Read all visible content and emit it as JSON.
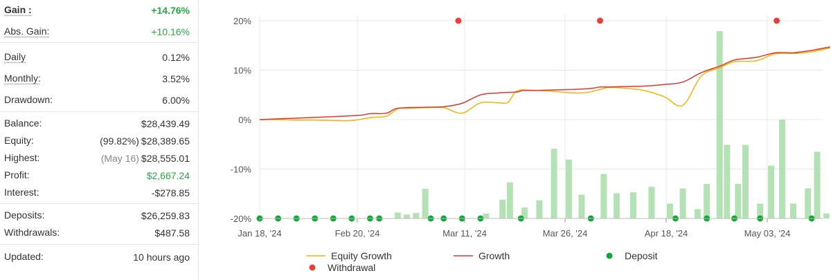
{
  "stats": {
    "gain": {
      "label": "Gain :",
      "value": "+14.76%"
    },
    "abs_gain": {
      "label": "Abs. Gain:",
      "value": "+10.16%"
    },
    "daily": {
      "label": "Daily",
      "value": "0.12%"
    },
    "monthly": {
      "label": "Monthly:",
      "value": "3.52%"
    },
    "drawdown": {
      "label": "Drawdown:",
      "value": "6.00%"
    },
    "balance": {
      "label": "Balance:",
      "value": "$28,439.49"
    },
    "equity": {
      "label": "Equity:",
      "prefix": "(99.82%)",
      "value": "$28,389.65"
    },
    "highest": {
      "label": "Highest:",
      "prefix": "(May 16)",
      "value": "$28,555.01"
    },
    "profit": {
      "label": "Profit:",
      "value": "$2,667.24"
    },
    "interest": {
      "label": "Interest:",
      "value": "-$278.85"
    },
    "deposits": {
      "label": "Deposits:",
      "value": "$26,259.83"
    },
    "withdrawals": {
      "label": "Withdrawals:",
      "value": "$487.58"
    },
    "updated": {
      "label": "Updated:",
      "value": "10 hours ago"
    }
  },
  "chart_data": {
    "type": "line",
    "x_ticks": [
      "Jan 18, '24",
      "Feb 20, '24",
      "Mar 11, '24",
      "Mar 26, '24",
      "Apr 18, '24",
      "May 03, '24"
    ],
    "y_ticks": [
      "20%",
      "10%",
      "0%",
      "-10%",
      "-20%"
    ],
    "ylim": [
      -20,
      20
    ],
    "grid": true,
    "legend_position": "bottom",
    "legend": {
      "equity_growth": "Equity Growth",
      "growth": "Growth",
      "deposit": "Deposit",
      "withdrawal": "Withdrawal"
    },
    "colors": {
      "equity_growth": "#f5b400",
      "growth": "#e3342f",
      "deposit": "#13a538",
      "withdrawal": "#e8403a",
      "bars": "#b5e2b5",
      "grid": "#e8e8e8"
    },
    "x_range": [
      0,
      30.6
    ],
    "series": [
      {
        "name": "Equity Growth",
        "x": [
          0,
          1,
          2,
          3,
          4,
          5,
          6,
          6.9,
          7.5,
          8,
          9,
          10,
          11,
          12,
          13,
          13.5,
          14,
          15,
          16,
          17,
          17.8,
          18.5,
          19,
          20,
          21,
          22,
          23,
          24,
          25,
          25.6,
          26,
          27,
          28,
          28.9,
          29.2,
          30,
          31
        ],
        "y": [
          0,
          0,
          -0.1,
          -0.1,
          -0.2,
          -0.2,
          0.4,
          0.7,
          2.2,
          2.3,
          2.4,
          2.4,
          1.3,
          3.4,
          3.4,
          3.5,
          5.8,
          5.9,
          5.7,
          5.4,
          5.5,
          6.1,
          6.5,
          6.3,
          5.8,
          4.6,
          2.9,
          8.8,
          10.5,
          11.5,
          11.8,
          11.9,
          13.3,
          13.4,
          13.4,
          13.7,
          14.5
        ]
      },
      {
        "name": "Growth",
        "x": [
          0,
          2,
          4,
          5.5,
          6,
          6.9,
          7.5,
          9,
          10,
          11,
          12,
          13,
          14,
          14.3,
          15,
          16,
          17,
          18,
          18.5,
          19,
          20,
          21,
          22,
          23,
          24,
          25,
          25.6,
          26,
          27,
          28,
          28.9,
          29.2,
          30,
          31
        ],
        "y": [
          0,
          0.3,
          0.6,
          0.9,
          1.2,
          1.3,
          2.3,
          2.5,
          2.6,
          3.3,
          5.0,
          5.4,
          5.6,
          5.9,
          5.9,
          6.0,
          6.1,
          6.3,
          6.6,
          6.6,
          6.7,
          6.8,
          7.1,
          7.6,
          9.5,
          10.8,
          11.8,
          12.2,
          12.6,
          13.5,
          13.5,
          13.6,
          14.0,
          14.7
        ]
      }
    ],
    "bars": {
      "x": [
        7.5,
        8,
        8.5,
        9,
        12.3,
        13.2,
        13.6,
        14.4,
        15.2,
        16,
        16.8,
        17.5,
        18.7,
        19.4,
        20.3,
        21.3,
        22.3,
        23,
        23.8,
        24.3,
        25,
        25.4,
        26,
        26.4,
        27.2,
        27.8,
        28.4,
        29,
        29.8,
        30.3,
        30.8
      ],
      "pct": [
        -18.8,
        -19.2,
        -18.9,
        -14.0,
        -19.0,
        -16.2,
        -12.7,
        -17.8,
        -16.3,
        -5.9,
        -8.1,
        -15.2,
        -11.0,
        -14.9,
        -14.7,
        -13.6,
        -17.0,
        -13.9,
        -18.1,
        -13.0,
        17.9,
        -5.1,
        -13.0,
        -5.1,
        -17.0,
        -9.3,
        0.0,
        -17.0,
        -13.9,
        -6.5,
        -19.0
      ]
    },
    "deposits_x": [
      0,
      1,
      2,
      3,
      4,
      5,
      6,
      6.5,
      9.3,
      10,
      11,
      12,
      14.2,
      18,
      22.6,
      24.3,
      25.8,
      27.2,
      30
    ],
    "withdrawals_x": [
      10.8,
      18.5,
      28.1
    ]
  }
}
